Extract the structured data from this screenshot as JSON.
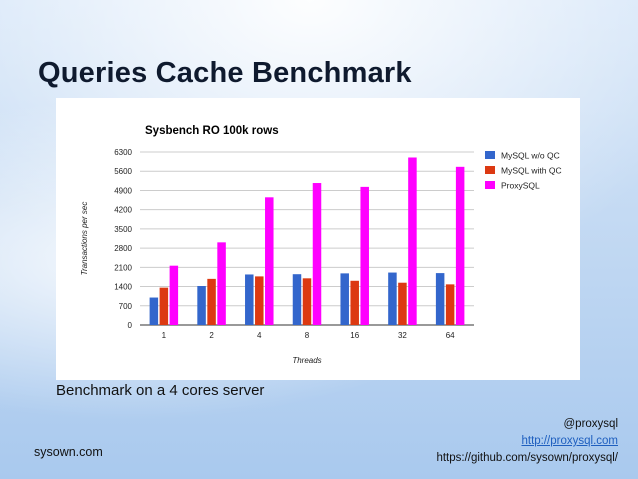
{
  "slide": {
    "title": "Queries Cache Benchmark",
    "caption": "Benchmark on a 4 cores server",
    "footer_left": "sysown.com",
    "footer_right": {
      "handle": "@proxysql",
      "site": "http://proxysql.com",
      "repo": "https://github.com/sysown/proxysql/"
    }
  },
  "chart_data": {
    "type": "bar",
    "title": "Sysbench RO 100k rows",
    "xlabel": "Threads",
    "ylabel": "Transactions per sec",
    "categories": [
      "1",
      "2",
      "4",
      "8",
      "16",
      "32",
      "64"
    ],
    "ylim": [
      0,
      6300
    ],
    "yticks": [
      0,
      700,
      1400,
      2100,
      2800,
      3500,
      4200,
      4900,
      5600,
      6300
    ],
    "grid": true,
    "legend_position": "right",
    "series": [
      {
        "name": "MySQL w/o QC",
        "color": "#3366cc",
        "values": [
          1000,
          1420,
          1840,
          1850,
          1880,
          1910,
          1890
        ]
      },
      {
        "name": "MySQL with QC",
        "color": "#dc3912",
        "values": [
          1360,
          1680,
          1770,
          1700,
          1610,
          1540,
          1480
        ]
      },
      {
        "name": "ProxySQL",
        "color": "#ff00ff",
        "values": [
          2160,
          3010,
          4650,
          5170,
          5030,
          6100,
          5760
        ]
      }
    ]
  }
}
